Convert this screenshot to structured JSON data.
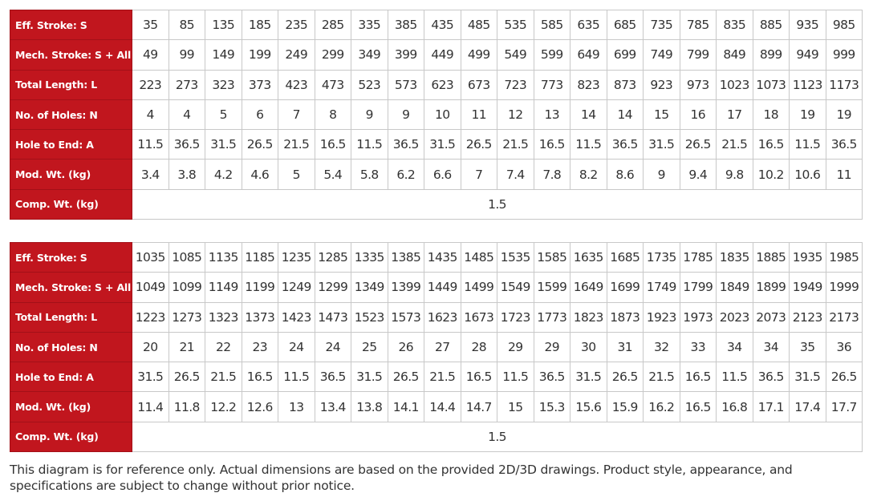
{
  "colors": {
    "header_bg": "#c1161e",
    "header_text": "#ffffff"
  },
  "tables": [
    {
      "rows": [
        {
          "label": "Eff. Stroke: S",
          "values": [
            "35",
            "85",
            "135",
            "185",
            "235",
            "285",
            "335",
            "385",
            "435",
            "485",
            "535",
            "585",
            "635",
            "685",
            "735",
            "785",
            "835",
            "885",
            "935",
            "985"
          ]
        },
        {
          "label": "Mech. Stroke: S + All.",
          "values": [
            "49",
            "99",
            "149",
            "199",
            "249",
            "299",
            "349",
            "399",
            "449",
            "499",
            "549",
            "599",
            "649",
            "699",
            "749",
            "799",
            "849",
            "899",
            "949",
            "999"
          ]
        },
        {
          "label": "Total Length: L",
          "values": [
            "223",
            "273",
            "323",
            "373",
            "423",
            "473",
            "523",
            "573",
            "623",
            "673",
            "723",
            "773",
            "823",
            "873",
            "923",
            "973",
            "1023",
            "1073",
            "1123",
            "1173"
          ]
        },
        {
          "label": "No. of Holes: N",
          "values": [
            "4",
            "4",
            "5",
            "6",
            "7",
            "8",
            "9",
            "9",
            "10",
            "11",
            "12",
            "13",
            "14",
            "14",
            "15",
            "16",
            "17",
            "18",
            "19",
            "19"
          ]
        },
        {
          "label": "Hole to End: A",
          "values": [
            "11.5",
            "36.5",
            "31.5",
            "26.5",
            "21.5",
            "16.5",
            "11.5",
            "36.5",
            "31.5",
            "26.5",
            "21.5",
            "16.5",
            "11.5",
            "36.5",
            "31.5",
            "26.5",
            "21.5",
            "16.5",
            "11.5",
            "36.5"
          ]
        },
        {
          "label": "Mod. Wt. (kg)",
          "values": [
            "3.4",
            "3.8",
            "4.2",
            "4.6",
            "5",
            "5.4",
            "5.8",
            "6.2",
            "6.6",
            "7",
            "7.4",
            "7.8",
            "8.2",
            "8.6",
            "9",
            "9.4",
            "9.8",
            "10.2",
            "10.6",
            "11"
          ]
        },
        {
          "label": "Comp. Wt. (kg)",
          "merged": "1.5"
        }
      ]
    },
    {
      "rows": [
        {
          "label": "Eff. Stroke: S",
          "values": [
            "1035",
            "1085",
            "1135",
            "1185",
            "1235",
            "1285",
            "1335",
            "1385",
            "1435",
            "1485",
            "1535",
            "1585",
            "1635",
            "1685",
            "1735",
            "1785",
            "1835",
            "1885",
            "1935",
            "1985"
          ]
        },
        {
          "label": "Mech. Stroke: S + All.",
          "values": [
            "1049",
            "1099",
            "1149",
            "1199",
            "1249",
            "1299",
            "1349",
            "1399",
            "1449",
            "1499",
            "1549",
            "1599",
            "1649",
            "1699",
            "1749",
            "1799",
            "1849",
            "1899",
            "1949",
            "1999"
          ]
        },
        {
          "label": "Total Length: L",
          "values": [
            "1223",
            "1273",
            "1323",
            "1373",
            "1423",
            "1473",
            "1523",
            "1573",
            "1623",
            "1673",
            "1723",
            "1773",
            "1823",
            "1873",
            "1923",
            "1973",
            "2023",
            "2073",
            "2123",
            "2173"
          ]
        },
        {
          "label": "No. of Holes: N",
          "values": [
            "20",
            "21",
            "22",
            "23",
            "24",
            "24",
            "25",
            "26",
            "27",
            "28",
            "29",
            "29",
            "30",
            "31",
            "32",
            "33",
            "34",
            "34",
            "35",
            "36"
          ]
        },
        {
          "label": "Hole to End: A",
          "values": [
            "31.5",
            "26.5",
            "21.5",
            "16.5",
            "11.5",
            "36.5",
            "31.5",
            "26.5",
            "21.5",
            "16.5",
            "11.5",
            "36.5",
            "31.5",
            "26.5",
            "21.5",
            "16.5",
            "11.5",
            "36.5",
            "31.5",
            "26.5"
          ]
        },
        {
          "label": "Mod. Wt. (kg)",
          "values": [
            "11.4",
            "11.8",
            "12.2",
            "12.6",
            "13",
            "13.4",
            "13.8",
            "14.1",
            "14.4",
            "14.7",
            "15",
            "15.3",
            "15.6",
            "15.9",
            "16.2",
            "16.5",
            "16.8",
            "17.1",
            "17.4",
            "17.7"
          ]
        },
        {
          "label": "Comp. Wt. (kg)",
          "merged": "1.5"
        }
      ]
    }
  ],
  "note": "This diagram is for reference only. Actual dimensions are based on the provided 2D/3D drawings. Product style, appearance, and specifications are subject to change without prior notice."
}
